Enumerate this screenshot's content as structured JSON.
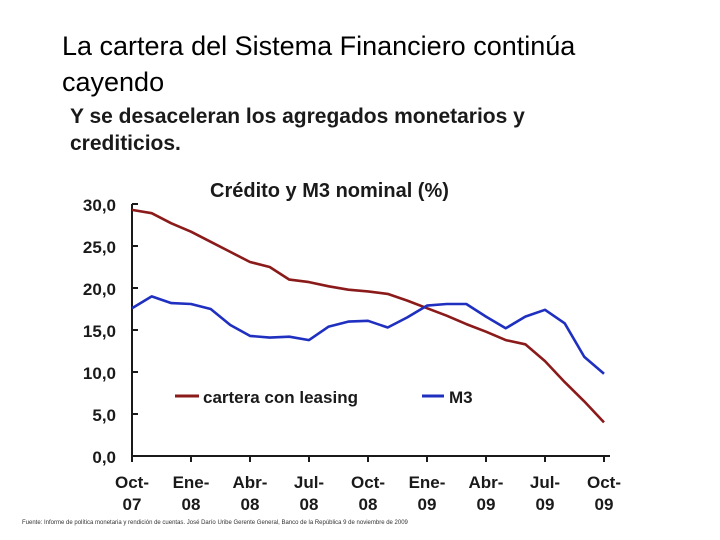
{
  "slide": {
    "title_line1": "La cartera del Sistema Financiero continúa",
    "title_line2": "cayendo",
    "footer": "Fuente: Informe de política monetaria y rendición de cuentas. José Darío Uribe Gerente General, Banco de la República 9 de noviembre de 2009"
  },
  "chart_data": {
    "type": "line",
    "headline_line1": "Y se desaceleran los agregados monetarios y",
    "headline_line2": "crediticios.",
    "title": "Crédito y M3 nominal (%)",
    "categories": [
      "Oct-07",
      "Ene-08",
      "Abr-08",
      "Jul-08",
      "Oct-08",
      "Ene-09",
      "Abr-09",
      "Jul-09",
      "Oct-09"
    ],
    "category_lines": [
      [
        "Oct-",
        "07"
      ],
      [
        "Ene-",
        "08"
      ],
      [
        "Abr-",
        "08"
      ],
      [
        "Jul-",
        "08"
      ],
      [
        "Oct-",
        "08"
      ],
      [
        "Ene-",
        "09"
      ],
      [
        "Abr-",
        "09"
      ],
      [
        "Jul-",
        "09"
      ],
      [
        "Oct-",
        "09"
      ]
    ],
    "x_months": [
      0,
      3,
      6,
      9,
      12,
      15,
      18,
      21,
      24
    ],
    "ylim": [
      0,
      30
    ],
    "yticks": [
      0,
      5,
      10,
      15,
      20,
      25,
      30
    ],
    "ytick_labels": [
      "0,0",
      "5,0",
      "10,0",
      "15,0",
      "20,0",
      "25,0",
      "30,0"
    ],
    "series": [
      {
        "name": "cartera con leasing",
        "color": "#8b1a1a",
        "x": [
          0,
          1,
          2,
          3,
          4,
          5,
          6,
          7,
          8,
          9,
          10,
          11,
          12,
          13,
          14,
          15,
          16,
          17,
          18,
          19,
          20,
          21,
          22,
          23,
          24
        ],
        "values": [
          29.3,
          28.9,
          27.7,
          26.7,
          25.5,
          24.3,
          23.1,
          22.5,
          21.0,
          20.7,
          20.2,
          19.8,
          19.6,
          19.3,
          18.5,
          17.6,
          16.7,
          15.7,
          14.8,
          13.8,
          13.3,
          11.3,
          8.8,
          6.5,
          4.0
        ]
      },
      {
        "name": "M3",
        "color": "#1f2fbf",
        "x": [
          0,
          1,
          2,
          3,
          4,
          5,
          6,
          7,
          8,
          9,
          10,
          11,
          12,
          13,
          14,
          15,
          16,
          17,
          18,
          19,
          20,
          21,
          22,
          23,
          24
        ],
        "values": [
          17.6,
          19.0,
          18.2,
          18.1,
          17.5,
          15.6,
          14.3,
          14.1,
          14.2,
          13.8,
          15.4,
          16.0,
          16.1,
          15.3,
          16.5,
          17.9,
          18.1,
          18.1,
          16.6,
          15.2,
          16.6,
          17.4,
          15.8,
          11.8,
          9.8
        ]
      }
    ],
    "legend_position": "bottom-center"
  }
}
